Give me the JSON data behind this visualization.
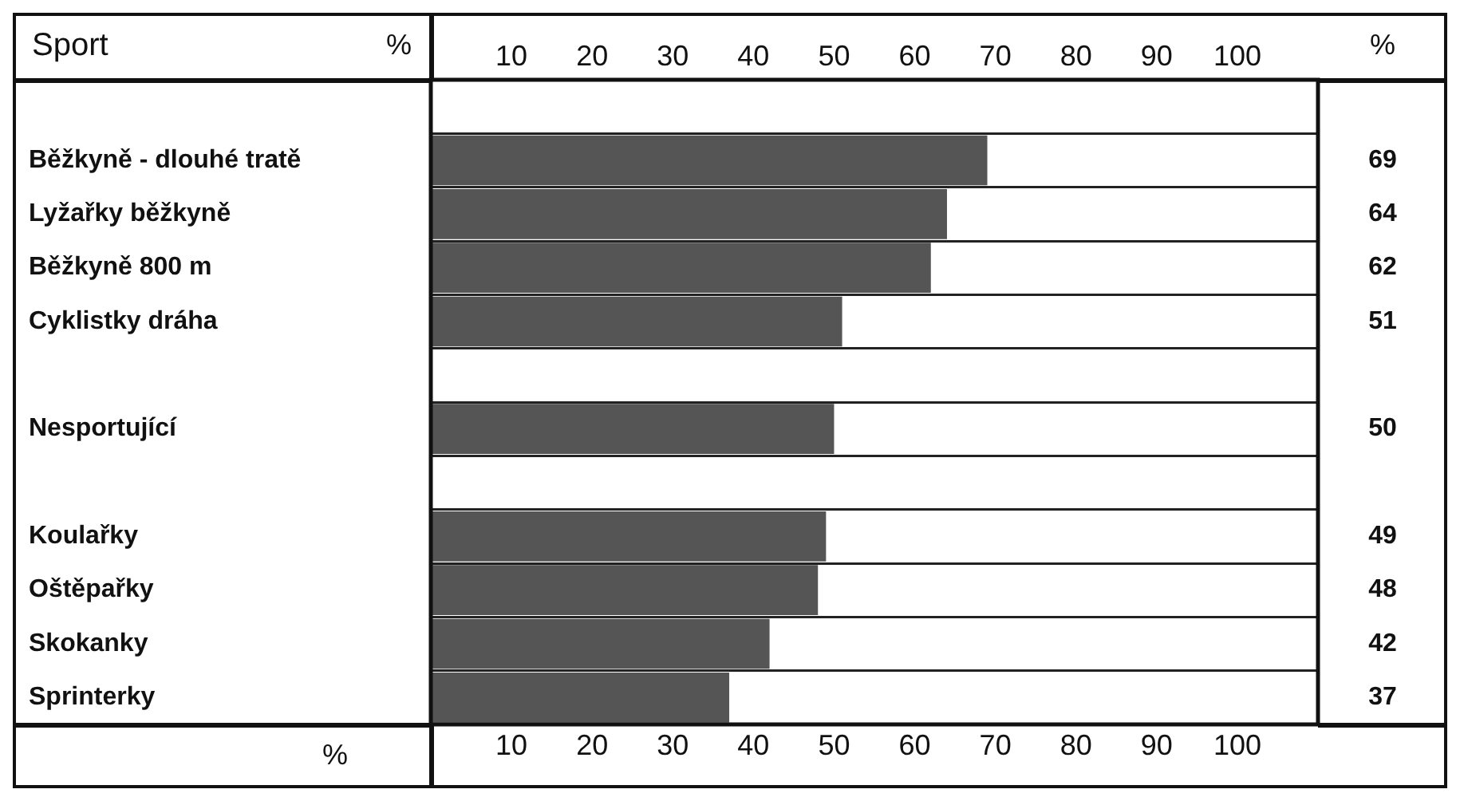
{
  "chart_data": {
    "type": "bar",
    "orientation": "horizontal",
    "ylabel": "Sport",
    "xlabel": "%",
    "x2label": "%",
    "annotations": [
      "%"
    ],
    "categories": [
      null,
      "Běžkyně - dlouhé tratě",
      "Lyžařky běžkyně",
      "Běžkyně 800 m",
      "Cyklistky dráha",
      null,
      "Nesportující",
      null,
      "Koulařky",
      "Oštěpařky",
      "Skokanky",
      "Sprinterky"
    ],
    "values": [
      null,
      69,
      64,
      62,
      51,
      null,
      50,
      null,
      49,
      48,
      42,
      37
    ],
    "color": "#555555",
    "xlim": [
      0,
      110
    ],
    "xticks": [
      10,
      20,
      30,
      40,
      50,
      60,
      70,
      80,
      90,
      100
    ],
    "x2lim": [
      0,
      110
    ],
    "x2ticks": [
      10,
      20,
      30,
      40,
      50,
      60,
      70,
      80,
      90,
      100
    ],
    "data_labels": true,
    "grid": "y",
    "legend": false
  }
}
